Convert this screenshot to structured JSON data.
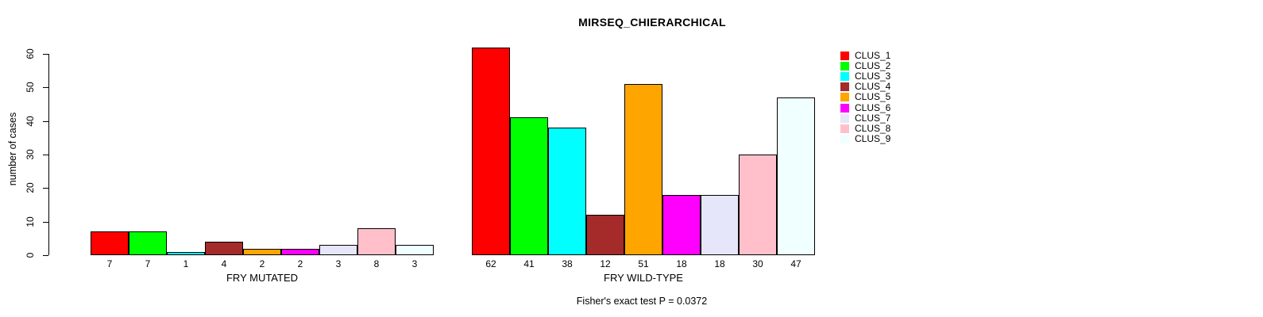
{
  "page": {
    "background": "#FFFFFF",
    "text_color": "#000000"
  },
  "chart_data": {
    "type": "bar",
    "title": "MIRSEQ_CHIERARCHICAL",
    "ylabel": "number of cases",
    "ylim": [
      0,
      60
    ],
    "yticks": [
      0,
      10,
      20,
      30,
      40,
      50,
      60
    ],
    "grid": false,
    "legend_position": "right",
    "bar_border_color": "#000000",
    "clusters": [
      {
        "name": "CLUS_1",
        "color": "#FF0000"
      },
      {
        "name": "CLUS_2",
        "color": "#00FF00"
      },
      {
        "name": "CLUS_3",
        "color": "#00FFFF"
      },
      {
        "name": "CLUS_4",
        "color": "#A52A2A"
      },
      {
        "name": "CLUS_5",
        "color": "#FFA500"
      },
      {
        "name": "CLUS_6",
        "color": "#FF00FF"
      },
      {
        "name": "CLUS_7",
        "color": "#E6E6FA"
      },
      {
        "name": "CLUS_8",
        "color": "#FFC0CB"
      },
      {
        "name": "CLUS_9",
        "color": "#F0FFFF"
      }
    ],
    "groups": [
      {
        "label": "FRY MUTATED",
        "values": [
          7,
          7,
          1,
          4,
          2,
          2,
          3,
          8,
          3
        ]
      },
      {
        "label": "FRY WILD-TYPE",
        "values": [
          62,
          41,
          38,
          12,
          51,
          18,
          18,
          30,
          47
        ]
      }
    ],
    "footnote": "Fisher's exact test P = 0.0372"
  }
}
